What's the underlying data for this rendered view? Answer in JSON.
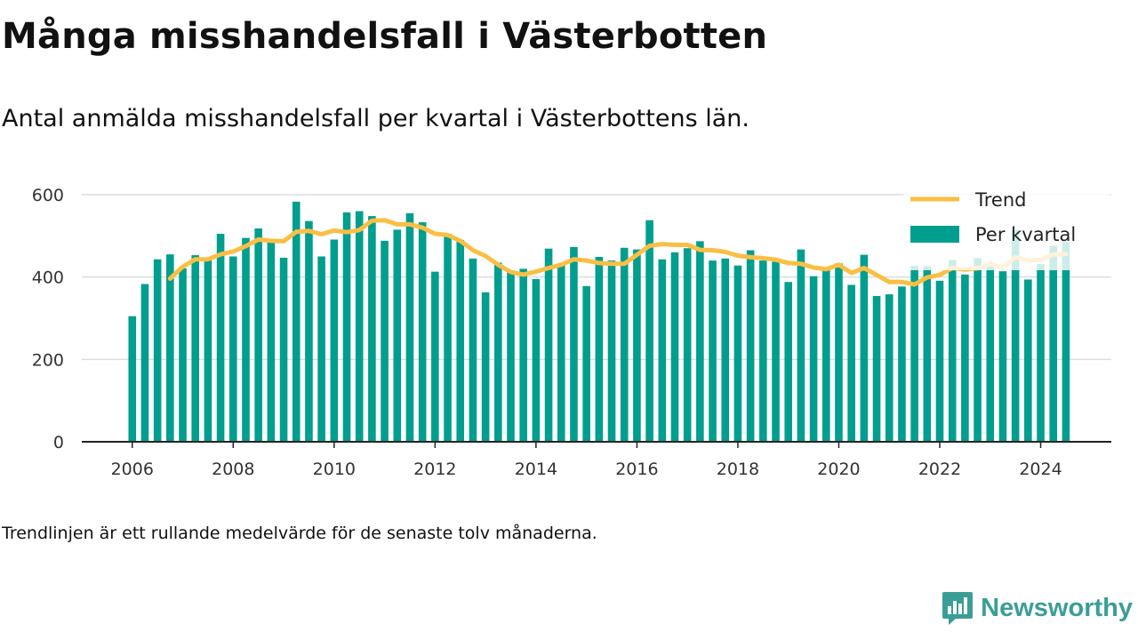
{
  "title": "Många misshandelsfall i Västerbotten",
  "subtitle": "Antal anmälda misshandelsfall per kvartal i Västerbottens län.",
  "note": "Trendlinjen är ett rullande medelvärde för de senaste tolv månaderna.",
  "brand": {
    "name": "Newsworthy",
    "icon": "bar-chart-logo-icon"
  },
  "colors": {
    "bars": "#009e8e",
    "trend": "#f9bf45",
    "grid": "#dddddd",
    "axis": "#222222"
  },
  "chart_data": {
    "type": "bar",
    "start_year": 2006,
    "start_quarter": 1,
    "xlim": [
      2005.0,
      2025.4
    ],
    "ylim": [
      0,
      600
    ],
    "x_ticks": [
      2006,
      2008,
      2010,
      2012,
      2014,
      2016,
      2018,
      2020,
      2022,
      2024
    ],
    "y_ticks": [
      0,
      200,
      400,
      600
    ],
    "grid": true,
    "legend_position": "top-right",
    "series": [
      {
        "name": "Per kvartal",
        "type": "bar",
        "values": [
          305,
          383,
          443,
          455,
          421,
          453,
          441,
          505,
          450,
          495,
          518,
          487,
          447,
          583,
          536,
          450,
          491,
          557,
          560,
          548,
          488,
          515,
          555,
          533,
          413,
          505,
          490,
          445,
          363,
          435,
          412,
          420,
          395,
          469,
          430,
          473,
          378,
          449,
          440,
          471,
          467,
          538,
          443,
          460,
          470,
          487,
          440,
          445,
          428,
          465,
          440,
          437,
          388,
          467,
          402,
          420,
          433,
          381,
          454,
          354,
          358,
          377,
          427,
          426,
          391,
          441,
          406,
          446,
          432,
          414,
          514,
          394,
          432,
          476,
          485
        ]
      },
      {
        "name": "Trend",
        "type": "line",
        "values": [
          null,
          null,
          null,
          396,
          425,
          443,
          443,
          455,
          462,
          475,
          491,
          488,
          487,
          510,
          512,
          504,
          513,
          509,
          514,
          537,
          538,
          528,
          528,
          520,
          505,
          502,
          488,
          465,
          451,
          430,
          412,
          406,
          413,
          422,
          430,
          443,
          440,
          434,
          432,
          432,
          454,
          476,
          480,
          478,
          478,
          466,
          465,
          461,
          452,
          448,
          446,
          442,
          434,
          432,
          423,
          419,
          430,
          410,
          422,
          405,
          388,
          388,
          382,
          399,
          405,
          422,
          418,
          421,
          432,
          423,
          448,
          440,
          442,
          455,
          456
        ]
      }
    ],
    "legend": [
      {
        "label": "Trend",
        "type": "line"
      },
      {
        "label": "Per kvartal",
        "type": "bar"
      }
    ]
  }
}
